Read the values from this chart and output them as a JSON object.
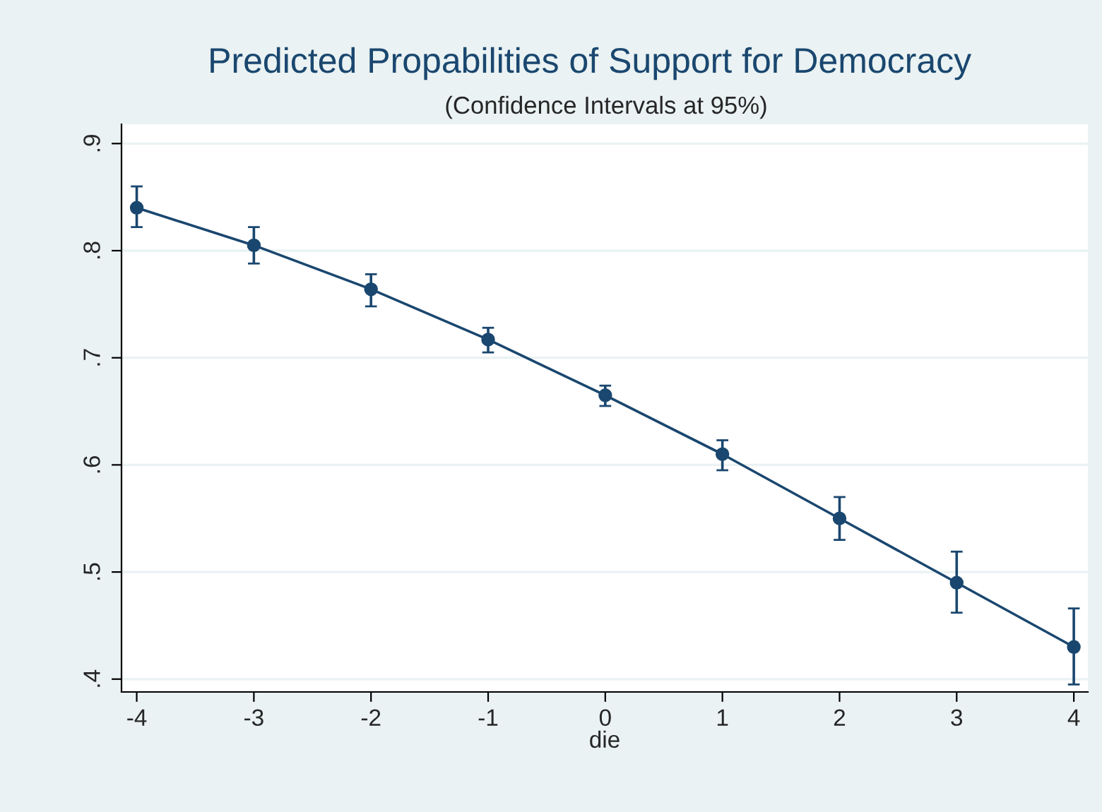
{
  "chart_data": {
    "type": "line",
    "title": "Predicted Propabilities of Support for Democracy",
    "subtitle": "(Confidence Intervals at 95%)",
    "xlabel": "die",
    "x": [
      -4,
      -3,
      -2,
      -1,
      0,
      1,
      2,
      3,
      4
    ],
    "series": [
      {
        "color": "#1a476f",
        "values": [
          0.84,
          0.805,
          0.764,
          0.717,
          0.665,
          0.61,
          0.55,
          0.49,
          0.43
        ],
        "errors": [
          [
            0.822,
            0.86
          ],
          [
            0.788,
            0.822
          ],
          [
            0.748,
            0.778
          ],
          [
            0.705,
            0.728
          ],
          [
            0.655,
            0.674
          ],
          [
            0.595,
            0.623
          ],
          [
            0.53,
            0.57
          ],
          [
            0.462,
            0.519
          ],
          [
            0.395,
            0.466
          ]
        ]
      }
    ],
    "xlim": [
      -4.13,
      4.12
    ],
    "ylim": [
      0.388,
      0.918
    ],
    "xticks": [
      -4,
      -3,
      -2,
      -1,
      0,
      1,
      2,
      3,
      4
    ],
    "yticks": [
      {
        "value": 0.4,
        "label": ".4"
      },
      {
        "value": 0.5,
        "label": ".5"
      },
      {
        "value": 0.6,
        "label": ".6"
      },
      {
        "value": 0.7,
        "label": ".7"
      },
      {
        "value": 0.8,
        "label": ".8"
      },
      {
        "value": 0.9,
        "label": ".9"
      }
    ],
    "grid": "y",
    "marker": "circle",
    "line_style": "solid"
  }
}
